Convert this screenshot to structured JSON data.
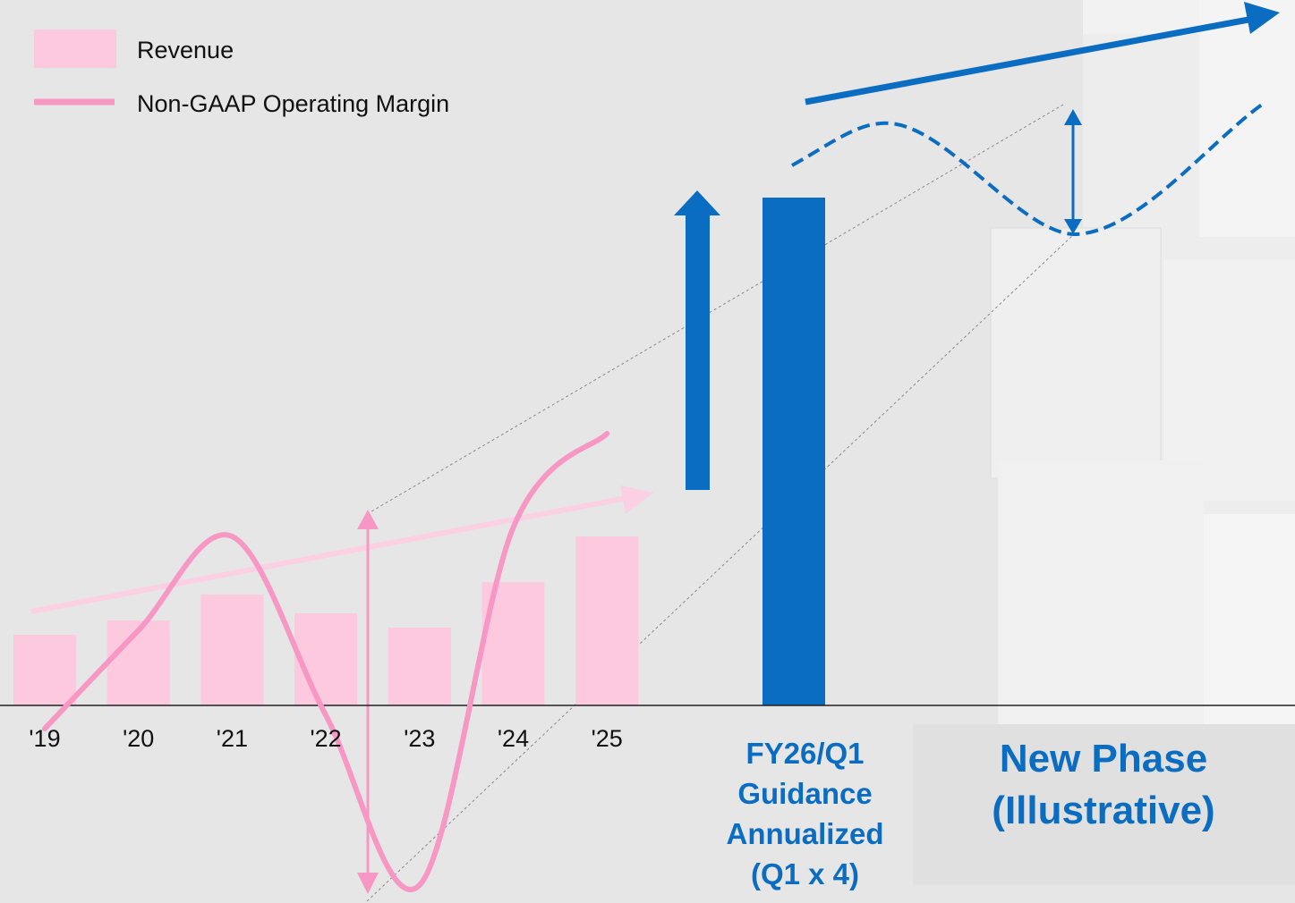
{
  "chart_data": {
    "type": "bar",
    "categories": [
      "'19",
      "'20",
      "'21",
      "'22",
      "'23",
      "'24",
      "'25",
      "FY26/Q1\nGuidance\nAnnualized\n(Q1 x 4)",
      "New Phase\n(Illustrative)"
    ],
    "series": [
      {
        "name": "Revenue",
        "type": "bar",
        "color": "#fcc9df",
        "highlight_color": "#0b6dc1",
        "values": [
          79,
          95,
          124,
          103,
          87,
          138,
          189,
          568,
          null
        ]
      },
      {
        "name": "Non-GAAP Operating Margin",
        "type": "line",
        "color": "#f797c4",
        "values": [
          -26,
          84,
          189,
          -11,
          -201,
          199,
          304,
          null,
          null
        ]
      }
    ],
    "ylim": [
      -220,
      600
    ]
  }
}
